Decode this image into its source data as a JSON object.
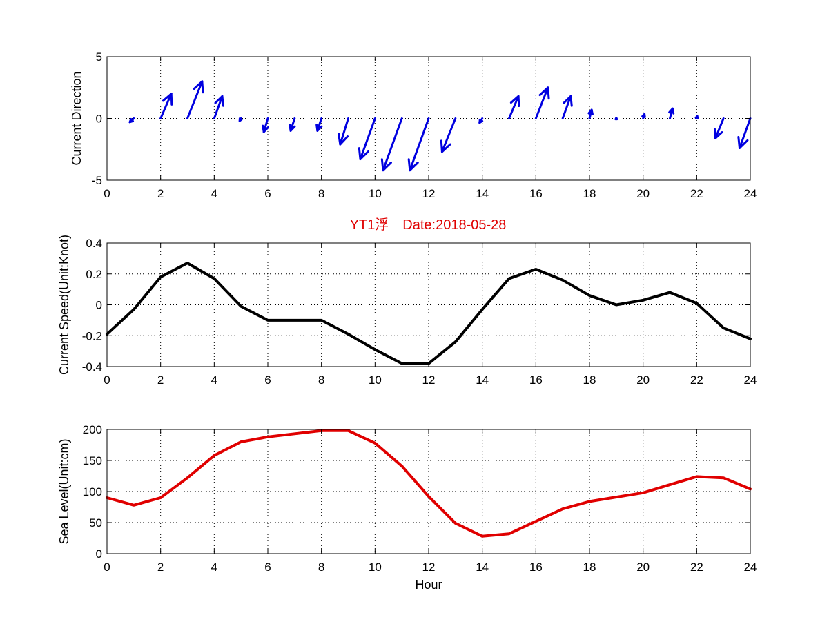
{
  "figure": {
    "title": "YT1浮　Date:2018-05-28",
    "title_color": "#e00000"
  },
  "chart_data": [
    {
      "id": "direction",
      "type": "quiver",
      "title": "",
      "xlabel": "",
      "ylabel": "Current Direction",
      "xlim": [
        0,
        24
      ],
      "ylim": [
        -5,
        5
      ],
      "xticks": [
        "0",
        "2",
        "4",
        "6",
        "8",
        "10",
        "12",
        "14",
        "16",
        "18",
        "20",
        "22",
        "24"
      ],
      "yticks": [
        "-5",
        "0",
        "5"
      ],
      "grid": true,
      "color": "#0000e0",
      "vectors": [
        {
          "x": 1,
          "u": -0.15,
          "v": -0.3
        },
        {
          "x": 2,
          "u": 0.4,
          "v": 2.0
        },
        {
          "x": 3,
          "u": 0.55,
          "v": 3.0
        },
        {
          "x": 4,
          "u": 0.3,
          "v": 1.8
        },
        {
          "x": 5,
          "u": -0.05,
          "v": -0.2
        },
        {
          "x": 6,
          "u": -0.15,
          "v": -1.1
        },
        {
          "x": 7,
          "u": -0.15,
          "v": -1.0
        },
        {
          "x": 8,
          "u": -0.15,
          "v": -1.0
        },
        {
          "x": 9,
          "u": -0.3,
          "v": -2.1
        },
        {
          "x": 10,
          "u": -0.55,
          "v": -3.3
        },
        {
          "x": 11,
          "u": -0.7,
          "v": -4.2
        },
        {
          "x": 12,
          "u": -0.7,
          "v": -4.2
        },
        {
          "x": 13,
          "u": -0.5,
          "v": -2.7
        },
        {
          "x": 14,
          "u": -0.1,
          "v": -0.35
        },
        {
          "x": 15,
          "u": 0.35,
          "v": 1.8
        },
        {
          "x": 16,
          "u": 0.45,
          "v": 2.5
        },
        {
          "x": 17,
          "u": 0.3,
          "v": 1.8
        },
        {
          "x": 18,
          "u": 0.08,
          "v": 0.7
        },
        {
          "x": 19,
          "u": 0.0,
          "v": 0.05
        },
        {
          "x": 20,
          "u": 0.05,
          "v": 0.35
        },
        {
          "x": 21,
          "u": 0.1,
          "v": 0.8
        },
        {
          "x": 22,
          "u": 0.02,
          "v": 0.2
        },
        {
          "x": 23,
          "u": -0.3,
          "v": -1.6
        },
        {
          "x": 24,
          "u": -0.4,
          "v": -2.4
        }
      ]
    },
    {
      "id": "speed",
      "type": "line",
      "title": "",
      "xlabel": "",
      "ylabel": "Current Speed(Unit:Knot)",
      "xlim": [
        0,
        24
      ],
      "ylim": [
        -0.4,
        0.4
      ],
      "xticks": [
        "0",
        "2",
        "4",
        "6",
        "8",
        "10",
        "12",
        "14",
        "16",
        "18",
        "20",
        "22",
        "24"
      ],
      "yticks": [
        "-0.4",
        "-0.2",
        "0",
        "0.2",
        "0.4"
      ],
      "grid": true,
      "color": "#000000",
      "x": [
        0,
        1,
        2,
        3,
        4,
        5,
        6,
        7,
        8,
        9,
        10,
        11,
        12,
        13,
        14,
        15,
        16,
        17,
        18,
        19,
        20,
        21,
        22,
        23,
        24
      ],
      "values": [
        -0.19,
        -0.03,
        0.18,
        0.27,
        0.17,
        -0.01,
        -0.1,
        -0.1,
        -0.1,
        -0.19,
        -0.29,
        -0.38,
        -0.38,
        -0.24,
        -0.03,
        0.17,
        0.23,
        0.16,
        0.06,
        0.0,
        0.03,
        0.08,
        0.01,
        -0.15,
        -0.22
      ]
    },
    {
      "id": "sealevel",
      "type": "line",
      "title": "",
      "xlabel": "Hour",
      "ylabel": "Sea Level(Unit:cm)",
      "xlim": [
        0,
        24
      ],
      "ylim": [
        0,
        200
      ],
      "xticks": [
        "0",
        "2",
        "4",
        "6",
        "8",
        "10",
        "12",
        "14",
        "16",
        "18",
        "20",
        "22",
        "24"
      ],
      "yticks": [
        "0",
        "50",
        "100",
        "150",
        "200"
      ],
      "grid": true,
      "color": "#e00000",
      "x": [
        0,
        1,
        2,
        3,
        4,
        5,
        6,
        7,
        8,
        9,
        10,
        11,
        12,
        13,
        14,
        15,
        16,
        17,
        18,
        19,
        20,
        21,
        22,
        23,
        24
      ],
      "values": [
        90,
        78,
        90,
        122,
        158,
        180,
        188,
        193,
        198,
        198,
        178,
        141,
        92,
        49,
        28,
        32,
        52,
        72,
        84,
        91,
        98,
        111,
        124,
        122,
        104
      ]
    }
  ]
}
